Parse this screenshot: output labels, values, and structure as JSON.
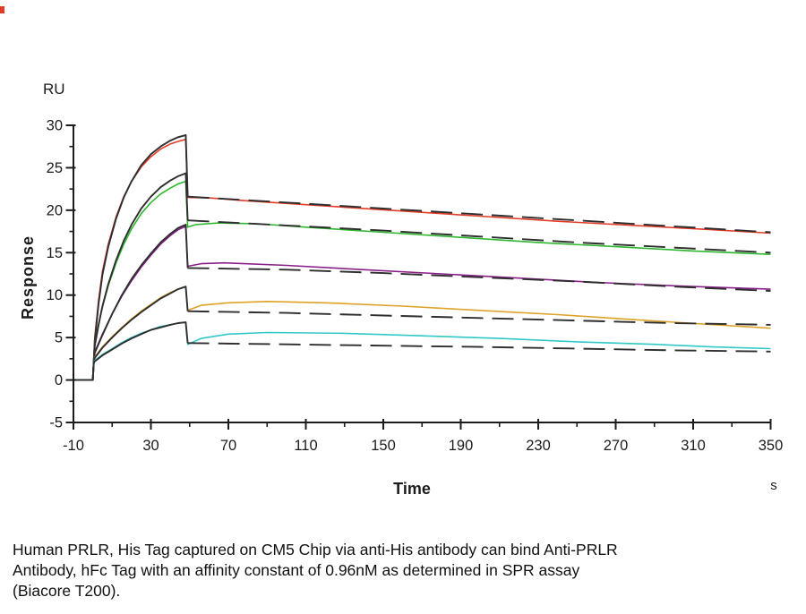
{
  "figure": {
    "caption": {
      "lines": [
        "Human PRLR, His Tag captured on CM5 Chip via anti-His antibody can bind Anti-PRLR",
        "Antibody, hFc Tag with an affinity constant of 0.96nM as determined in SPR assay",
        "(Biacore T200)."
      ]
    }
  },
  "chart_data": {
    "type": "line",
    "title": "",
    "xlabel": "Time",
    "x_unit": "s",
    "ylabel": "Response",
    "y_unit": "RU",
    "xlim": [
      -10,
      350
    ],
    "ylim": [
      -5,
      30
    ],
    "x_major_ticks": [
      -10,
      30,
      70,
      110,
      150,
      190,
      230,
      270,
      310,
      350
    ],
    "y_major_ticks": [
      -5,
      0,
      5,
      10,
      15,
      20,
      25,
      30
    ],
    "grid": false,
    "legend": "none",
    "axis_color": "#1c1c1c",
    "fit_color": "#2e2e2e",
    "description": "SPR sensorgram: five analyte concentrations (colored measured curves) each overlaid with a black kinetic fit; association ~0-49 s, dissociation 49-350 s",
    "series": [
      {
        "name": "red-highest-concentration",
        "color": "#e23b26",
        "data_points": [
          [
            -10,
            0
          ],
          [
            0,
            0
          ],
          [
            0.5,
            2.5
          ],
          [
            1,
            5.0
          ],
          [
            3,
            9.4
          ],
          [
            5,
            12.8
          ],
          [
            8,
            16.0
          ],
          [
            12,
            19.2
          ],
          [
            16,
            21.6
          ],
          [
            20,
            23.4
          ],
          [
            25,
            25.1
          ],
          [
            30,
            26.3
          ],
          [
            35,
            27.2
          ],
          [
            40,
            27.8
          ],
          [
            44,
            28.1
          ],
          [
            48,
            28.35
          ],
          [
            49,
            21.5
          ],
          [
            60,
            21.45
          ],
          [
            80,
            21.1
          ],
          [
            120,
            20.5
          ],
          [
            160,
            19.9
          ],
          [
            200,
            19.3
          ],
          [
            240,
            18.7
          ],
          [
            280,
            18.2
          ],
          [
            320,
            17.7
          ],
          [
            350,
            17.3
          ]
        ],
        "fit_association": [
          [
            -10,
            0
          ],
          [
            0,
            0
          ],
          [
            0.5,
            2.3
          ],
          [
            1,
            4.6
          ],
          [
            3,
            9.0
          ],
          [
            5,
            12.4
          ],
          [
            8,
            15.7
          ],
          [
            12,
            19.0
          ],
          [
            16,
            21.5
          ],
          [
            20,
            23.4
          ],
          [
            25,
            25.3
          ],
          [
            30,
            26.6
          ],
          [
            35,
            27.5
          ],
          [
            40,
            28.2
          ],
          [
            44,
            28.6
          ],
          [
            48,
            28.85
          ],
          [
            49,
            21.6
          ]
        ],
        "fit_dissociation": [
          [
            49,
            21.6
          ],
          [
            100,
            20.9
          ],
          [
            150,
            20.2
          ],
          [
            200,
            19.5
          ],
          [
            250,
            18.8
          ],
          [
            300,
            18.1
          ],
          [
            350,
            17.4
          ]
        ]
      },
      {
        "name": "green-concentration-2",
        "color": "#2eb82e",
        "data_points": [
          [
            -10,
            0
          ],
          [
            0,
            0
          ],
          [
            0.5,
            2.3
          ],
          [
            1,
            4.2
          ],
          [
            3,
            6.6
          ],
          [
            5,
            8.6
          ],
          [
            8,
            11.1
          ],
          [
            12,
            13.8
          ],
          [
            16,
            16.0
          ],
          [
            20,
            17.8
          ],
          [
            25,
            19.6
          ],
          [
            30,
            20.9
          ],
          [
            35,
            21.9
          ],
          [
            40,
            22.6
          ],
          [
            44,
            23.1
          ],
          [
            48,
            23.4
          ],
          [
            49,
            18.0
          ],
          [
            53,
            18.3
          ],
          [
            65,
            18.5
          ],
          [
            85,
            18.4
          ],
          [
            110,
            18.0
          ],
          [
            150,
            17.4
          ],
          [
            190,
            16.8
          ],
          [
            230,
            16.2
          ],
          [
            270,
            15.7
          ],
          [
            310,
            15.2
          ],
          [
            350,
            14.8
          ]
        ],
        "fit_association": [
          [
            -10,
            0
          ],
          [
            0,
            0
          ],
          [
            0.5,
            2.2
          ],
          [
            1,
            4.0
          ],
          [
            3,
            6.5
          ],
          [
            5,
            8.7
          ],
          [
            8,
            11.3
          ],
          [
            12,
            14.1
          ],
          [
            16,
            16.4
          ],
          [
            20,
            18.3
          ],
          [
            25,
            20.2
          ],
          [
            30,
            21.6
          ],
          [
            35,
            22.7
          ],
          [
            40,
            23.5
          ],
          [
            44,
            24.0
          ],
          [
            48,
            24.35
          ],
          [
            49,
            18.8
          ]
        ],
        "fit_dissociation": [
          [
            49,
            18.8
          ],
          [
            100,
            18.2
          ],
          [
            150,
            17.6
          ],
          [
            200,
            16.9
          ],
          [
            250,
            16.2
          ],
          [
            300,
            15.6
          ],
          [
            350,
            15.0
          ]
        ]
      },
      {
        "name": "purple-concentration-3",
        "color": "#8a1f8a",
        "data_points": [
          [
            -10,
            0
          ],
          [
            0,
            0
          ],
          [
            0.5,
            2.2
          ],
          [
            1,
            3.3
          ],
          [
            5,
            5.4
          ],
          [
            10,
            7.8
          ],
          [
            15,
            9.9
          ],
          [
            20,
            11.7
          ],
          [
            25,
            13.3
          ],
          [
            30,
            14.7
          ],
          [
            35,
            16.0
          ],
          [
            40,
            17.0
          ],
          [
            44,
            17.7
          ],
          [
            48,
            18.1
          ],
          [
            49,
            13.4
          ],
          [
            56,
            13.7
          ],
          [
            68,
            13.8
          ],
          [
            100,
            13.5
          ],
          [
            140,
            13.0
          ],
          [
            180,
            12.5
          ],
          [
            220,
            12.0
          ],
          [
            260,
            11.5
          ],
          [
            300,
            11.1
          ],
          [
            350,
            10.7
          ]
        ],
        "fit_association": [
          [
            -10,
            0
          ],
          [
            0,
            0
          ],
          [
            0.5,
            2.1
          ],
          [
            1,
            3.2
          ],
          [
            5,
            5.3
          ],
          [
            10,
            7.8
          ],
          [
            15,
            10.0
          ],
          [
            20,
            11.9
          ],
          [
            25,
            13.5
          ],
          [
            30,
            14.9
          ],
          [
            35,
            16.2
          ],
          [
            40,
            17.2
          ],
          [
            44,
            17.9
          ],
          [
            48,
            18.3
          ],
          [
            49,
            13.2
          ]
        ],
        "fit_dissociation": [
          [
            49,
            13.2
          ],
          [
            100,
            13.0
          ],
          [
            150,
            12.6
          ],
          [
            200,
            12.1
          ],
          [
            250,
            11.6
          ],
          [
            300,
            11.0
          ],
          [
            350,
            10.5
          ]
        ]
      },
      {
        "name": "orange-concentration-4",
        "color": "#dfa126",
        "data_points": [
          [
            -10,
            0
          ],
          [
            0,
            0
          ],
          [
            0.5,
            2.2
          ],
          [
            1,
            2.7
          ],
          [
            5,
            3.9
          ],
          [
            10,
            5.1
          ],
          [
            15,
            6.2
          ],
          [
            20,
            7.2
          ],
          [
            25,
            8.1
          ],
          [
            30,
            8.9
          ],
          [
            35,
            9.7
          ],
          [
            40,
            10.3
          ],
          [
            44,
            10.7
          ],
          [
            48,
            11.0
          ],
          [
            49,
            8.2
          ],
          [
            56,
            8.8
          ],
          [
            70,
            9.1
          ],
          [
            90,
            9.25
          ],
          [
            120,
            9.1
          ],
          [
            160,
            8.7
          ],
          [
            200,
            8.2
          ],
          [
            240,
            7.7
          ],
          [
            280,
            7.1
          ],
          [
            315,
            6.6
          ],
          [
            350,
            6.1
          ]
        ],
        "fit_association": [
          [
            -10,
            0
          ],
          [
            0,
            0
          ],
          [
            0.5,
            2.1
          ],
          [
            1,
            2.6
          ],
          [
            5,
            3.8
          ],
          [
            10,
            5.0
          ],
          [
            15,
            6.1
          ],
          [
            20,
            7.1
          ],
          [
            25,
            8.0
          ],
          [
            30,
            8.8
          ],
          [
            35,
            9.6
          ],
          [
            40,
            10.2
          ],
          [
            44,
            10.7
          ],
          [
            48,
            11.0
          ],
          [
            49,
            8.1
          ]
        ],
        "fit_dissociation": [
          [
            49,
            8.1
          ],
          [
            100,
            7.9
          ],
          [
            150,
            7.6
          ],
          [
            200,
            7.3
          ],
          [
            250,
            7.0
          ],
          [
            300,
            6.7
          ],
          [
            350,
            6.5
          ]
        ]
      },
      {
        "name": "cyan-lowest-concentration",
        "color": "#30c8c8",
        "data_points": [
          [
            -10,
            0
          ],
          [
            0,
            0
          ],
          [
            0.5,
            2.0
          ],
          [
            1,
            2.3
          ],
          [
            5,
            3.0
          ],
          [
            10,
            3.7
          ],
          [
            15,
            4.4
          ],
          [
            20,
            5.0
          ],
          [
            25,
            5.5
          ],
          [
            30,
            5.9
          ],
          [
            35,
            6.3
          ],
          [
            40,
            6.5
          ],
          [
            44,
            6.7
          ],
          [
            48,
            6.8
          ],
          [
            49,
            4.2
          ],
          [
            56,
            4.9
          ],
          [
            70,
            5.4
          ],
          [
            90,
            5.6
          ],
          [
            130,
            5.5
          ],
          [
            170,
            5.2
          ],
          [
            210,
            4.9
          ],
          [
            250,
            4.5
          ],
          [
            290,
            4.2
          ],
          [
            320,
            3.9
          ],
          [
            350,
            3.7
          ]
        ],
        "fit_association": [
          [
            -10,
            0
          ],
          [
            0,
            0
          ],
          [
            0.5,
            2.0
          ],
          [
            1,
            2.2
          ],
          [
            5,
            2.9
          ],
          [
            10,
            3.6
          ],
          [
            15,
            4.3
          ],
          [
            20,
            4.9
          ],
          [
            25,
            5.4
          ],
          [
            30,
            5.9
          ],
          [
            35,
            6.2
          ],
          [
            40,
            6.5
          ],
          [
            44,
            6.7
          ],
          [
            48,
            6.8
          ],
          [
            49,
            4.35
          ]
        ],
        "fit_dissociation": [
          [
            49,
            4.35
          ],
          [
            100,
            4.2
          ],
          [
            150,
            4.05
          ],
          [
            200,
            3.9
          ],
          [
            250,
            3.7
          ],
          [
            300,
            3.5
          ],
          [
            350,
            3.35
          ]
        ]
      }
    ]
  }
}
